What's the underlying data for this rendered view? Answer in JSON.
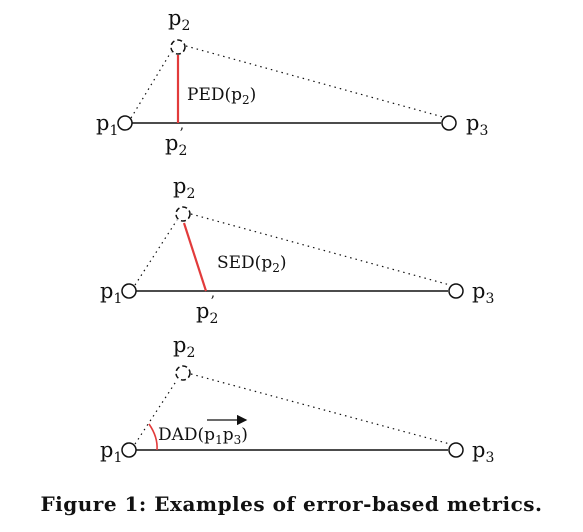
{
  "caption": "Figure 1: Examples of error-based metrics.",
  "colors": {
    "line": "#111111",
    "highlight": "#e23b3b"
  },
  "panels": [
    {
      "p1": {
        "base": "p",
        "sub": "1"
      },
      "p2": {
        "base": "p",
        "sub": "2"
      },
      "p3": {
        "base": "p",
        "sub": "3"
      },
      "p2prime": {
        "base": "p",
        "sub": "2",
        "prime": "’"
      },
      "metric": {
        "name": "PED(",
        "arg_base": "p",
        "arg_sub": "2",
        "close": ")"
      }
    },
    {
      "p1": {
        "base": "p",
        "sub": "1"
      },
      "p2": {
        "base": "p",
        "sub": "2"
      },
      "p3": {
        "base": "p",
        "sub": "3"
      },
      "p2prime": {
        "base": "p",
        "sub": "2",
        "prime": "’"
      },
      "metric": {
        "name": "SED(",
        "arg_base": "p",
        "arg_sub": "2",
        "close": ")"
      }
    },
    {
      "p1": {
        "base": "p",
        "sub": "1"
      },
      "p2": {
        "base": "p",
        "sub": "2"
      },
      "p3": {
        "base": "p",
        "sub": "3"
      },
      "metric": {
        "name": "DAD(",
        "v1_base": "p",
        "v1_sub": "1",
        "v2_base": "p",
        "v2_sub": "3",
        "close": ")"
      }
    }
  ]
}
